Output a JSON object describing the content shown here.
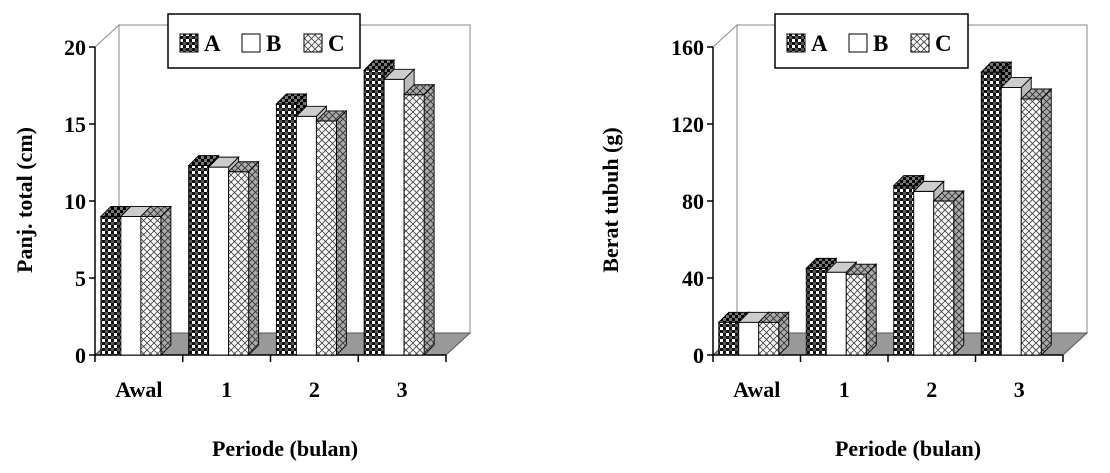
{
  "chart_data": [
    {
      "type": "bar",
      "categories": [
        "Awal",
        "1",
        "2",
        "3"
      ],
      "series": [
        {
          "name": "A",
          "values": [
            9,
            12.3,
            16.3,
            18.5
          ]
        },
        {
          "name": "B",
          "values": [
            9,
            12.2,
            15.5,
            17.9
          ]
        },
        {
          "name": "C",
          "values": [
            9,
            11.9,
            15.2,
            16.9
          ]
        }
      ],
      "xlabel": "Periode (bulan)",
      "ylabel": "Panj. total (cm)",
      "ylim": [
        0,
        20
      ],
      "yticks": [
        0,
        5,
        10,
        15,
        20
      ],
      "legend": "top-left",
      "style": "3d-clustered",
      "colors": {
        "A": "#333333",
        "B": "#ffffff",
        "C": "#dddddd",
        "floor": "#999999"
      }
    },
    {
      "type": "bar",
      "categories": [
        "Awal",
        "1",
        "2",
        "3"
      ],
      "series": [
        {
          "name": "A",
          "values": [
            17,
            45,
            88,
            147
          ]
        },
        {
          "name": "B",
          "values": [
            17,
            43,
            85,
            139
          ]
        },
        {
          "name": "C",
          "values": [
            17,
            42,
            80,
            133
          ]
        }
      ],
      "xlabel": "Periode (bulan)",
      "ylabel": "Berat tubuh (g)",
      "ylim": [
        0,
        160
      ],
      "yticks": [
        0,
        40,
        80,
        120,
        160
      ],
      "legend": "top-left",
      "style": "3d-clustered",
      "colors": {
        "A": "#333333",
        "B": "#ffffff",
        "C": "#dddddd",
        "floor": "#999999"
      }
    }
  ]
}
